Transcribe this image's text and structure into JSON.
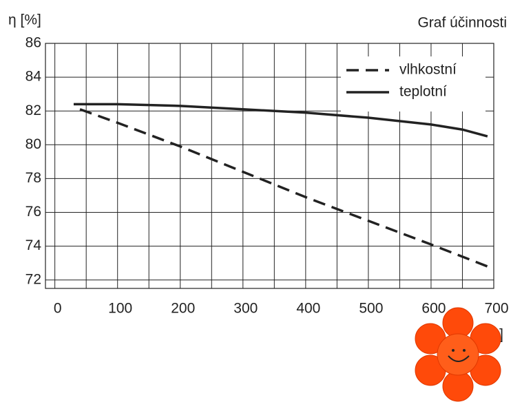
{
  "chart_data": {
    "type": "line",
    "title": "Graf účinnosti",
    "y_label": "η [%]",
    "x_label": "h]",
    "xlim": [
      -15,
      700
    ],
    "xticks": [
      0,
      100,
      200,
      300,
      400,
      500,
      600,
      700
    ],
    "x_minor_ticks": [
      50,
      150,
      250,
      350,
      450,
      550,
      650
    ],
    "ylim": [
      71.5,
      86
    ],
    "yticks": [
      72,
      74,
      76,
      78,
      80,
      82,
      84,
      86
    ],
    "grid": true,
    "legend": "upper right",
    "series": [
      {
        "name": "vlhkostní",
        "color": "#222222",
        "dash": true,
        "x": [
          40,
          100,
          200,
          300,
          400,
          500,
          600,
          690
        ],
        "values": [
          82.1,
          81.3,
          79.9,
          78.4,
          76.9,
          75.5,
          74.1,
          72.8
        ]
      },
      {
        "name": "teplotní",
        "color": "#222222",
        "dash": false,
        "x": [
          30,
          100,
          200,
          300,
          400,
          500,
          600,
          650,
          690
        ],
        "values": [
          82.4,
          82.4,
          82.3,
          82.1,
          81.9,
          81.6,
          81.2,
          80.9,
          80.5
        ]
      }
    ]
  }
}
